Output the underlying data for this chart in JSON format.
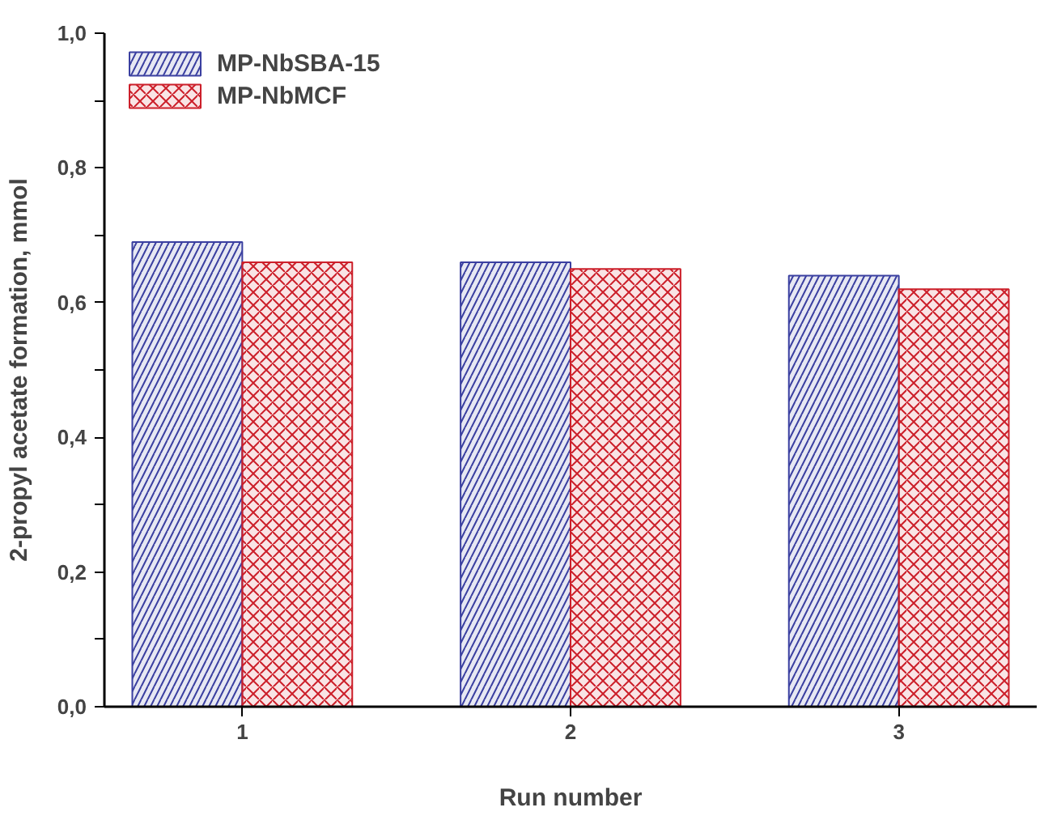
{
  "chart_data": {
    "type": "bar",
    "xlabel": "Run number",
    "ylabel": "2-propyl acetate formation, mmol",
    "categories": [
      "1",
      "2",
      "3"
    ],
    "series": [
      {
        "name": "MP-NbSBA-15",
        "color": "#3a3fa0",
        "values": [
          0.69,
          0.66,
          0.64
        ]
      },
      {
        "name": "MP-NbMCF",
        "color": "#cc1f2a",
        "values": [
          0.66,
          0.65,
          0.62
        ]
      }
    ],
    "ylim": [
      0,
      1.0
    ],
    "yticks": [
      {
        "value": 0,
        "label": "0,0"
      },
      {
        "value": 0.1,
        "label": null
      },
      {
        "value": 0.2,
        "label": "0,2"
      },
      {
        "value": 0.3,
        "label": null
      },
      {
        "value": 0.4,
        "label": "0,4"
      },
      {
        "value": 0.5,
        "label": null
      },
      {
        "value": 0.6,
        "label": "0,6"
      },
      {
        "value": 0.7,
        "label": null
      },
      {
        "value": 0.8,
        "label": "0,8"
      },
      {
        "value": 0.9,
        "label": null
      },
      {
        "value": 1.0,
        "label": "1,0"
      }
    ],
    "grid": false,
    "legend": "top left"
  }
}
